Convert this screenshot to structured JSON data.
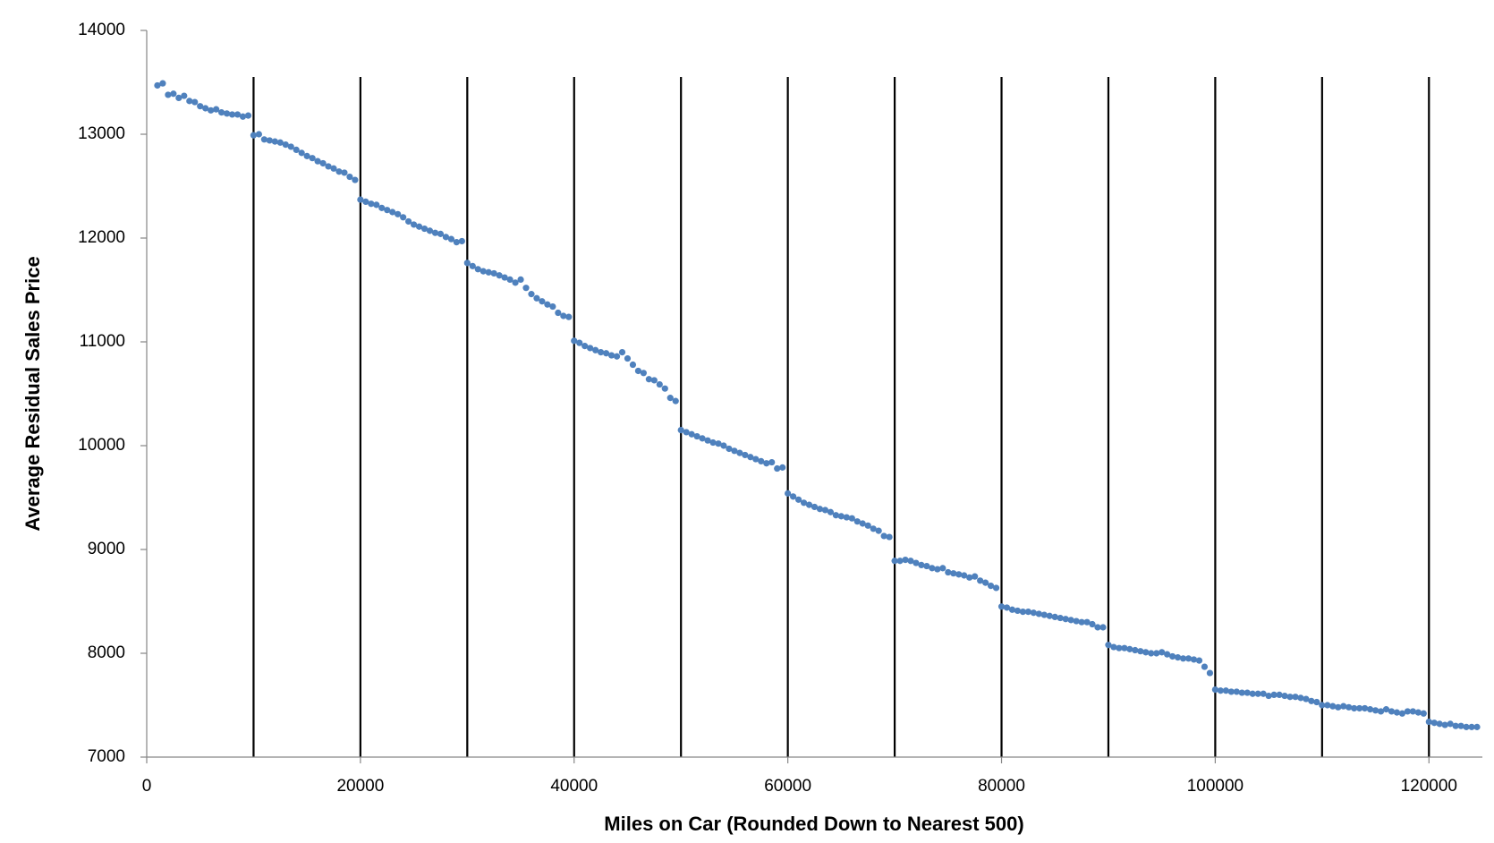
{
  "chart_data": {
    "type": "scatter",
    "xlabel": "Miles on Car (Rounded Down to Nearest 500)",
    "ylabel": "Average Residual Sales Price",
    "color": "#4f81bd",
    "xlim": [
      0,
      125000
    ],
    "ylim": [
      7000,
      14000
    ],
    "xticks": [
      0,
      20000,
      40000,
      60000,
      80000,
      100000,
      120000
    ],
    "yticks": [
      7000,
      8000,
      9000,
      10000,
      11000,
      12000,
      13000,
      14000
    ],
    "vlines": [
      10000,
      20000,
      30000,
      40000,
      50000,
      60000,
      70000,
      80000,
      90000,
      100000,
      110000,
      120000
    ],
    "vline_color": "#000000",
    "x": [
      1000,
      1500,
      2000,
      2500,
      3000,
      3500,
      4000,
      4500,
      5000,
      5500,
      6000,
      6500,
      7000,
      7500,
      8000,
      8500,
      9000,
      9500,
      10000,
      10500,
      11000,
      11500,
      12000,
      12500,
      13000,
      13500,
      14000,
      14500,
      15000,
      15500,
      16000,
      16500,
      17000,
      17500,
      18000,
      18500,
      19000,
      19500,
      20000,
      20500,
      21000,
      21500,
      22000,
      22500,
      23000,
      23500,
      24000,
      24500,
      25000,
      25500,
      26000,
      26500,
      27000,
      27500,
      28000,
      28500,
      29000,
      29500,
      30000,
      30500,
      31000,
      31500,
      32000,
      32500,
      33000,
      33500,
      34000,
      34500,
      35000,
      35500,
      36000,
      36500,
      37000,
      37500,
      38000,
      38500,
      39000,
      39500,
      40000,
      40500,
      41000,
      41500,
      42000,
      42500,
      43000,
      43500,
      44000,
      44500,
      45000,
      45500,
      46000,
      46500,
      47000,
      47500,
      48000,
      48500,
      49000,
      49500,
      50000,
      50500,
      51000,
      51500,
      52000,
      52500,
      53000,
      53500,
      54000,
      54500,
      55000,
      55500,
      56000,
      56500,
      57000,
      57500,
      58000,
      58500,
      59000,
      59500,
      60000,
      60500,
      61000,
      61500,
      62000,
      62500,
      63000,
      63500,
      64000,
      64500,
      65000,
      65500,
      66000,
      66500,
      67000,
      67500,
      68000,
      68500,
      69000,
      69500,
      70000,
      70500,
      71000,
      71500,
      72000,
      72500,
      73000,
      73500,
      74000,
      74500,
      75000,
      75500,
      76000,
      76500,
      77000,
      77500,
      78000,
      78500,
      79000,
      79500,
      80000,
      80500,
      81000,
      81500,
      82000,
      82500,
      83000,
      83500,
      84000,
      84500,
      85000,
      85500,
      86000,
      86500,
      87000,
      87500,
      88000,
      88500,
      89000,
      89500,
      90000,
      90500,
      91000,
      91500,
      92000,
      92500,
      93000,
      93500,
      94000,
      94500,
      95000,
      95500,
      96000,
      96500,
      97000,
      97500,
      98000,
      98500,
      99000,
      99500,
      100000,
      100500,
      101000,
      101500,
      102000,
      102500,
      103000,
      103500,
      104000,
      104500,
      105000,
      105500,
      106000,
      106500,
      107000,
      107500,
      108000,
      108500,
      109000,
      109500,
      110000,
      110500,
      111000,
      111500,
      112000,
      112500,
      113000,
      113500,
      114000,
      114500,
      115000,
      115500,
      116000,
      116500,
      117000,
      117500,
      118000,
      118500,
      119000,
      119500,
      120000,
      120500,
      121000,
      121500,
      122000,
      122500,
      123000,
      123500,
      124000,
      124500
    ],
    "values": [
      13470,
      13490,
      13380,
      13390,
      13350,
      13370,
      13320,
      13310,
      13270,
      13250,
      13230,
      13240,
      13210,
      13200,
      13190,
      13190,
      13170,
      13180,
      12990,
      13000,
      12950,
      12940,
      12930,
      12920,
      12900,
      12880,
      12850,
      12820,
      12790,
      12770,
      12740,
      12720,
      12690,
      12670,
      12640,
      12630,
      12590,
      12560,
      12370,
      12350,
      12330,
      12320,
      12290,
      12270,
      12250,
      12230,
      12200,
      12160,
      12130,
      12110,
      12090,
      12070,
      12050,
      12040,
      12010,
      11990,
      11960,
      11970,
      11760,
      11730,
      11700,
      11680,
      11670,
      11660,
      11640,
      11620,
      11600,
      11570,
      11600,
      11520,
      11460,
      11420,
      11390,
      11360,
      11340,
      11280,
      11250,
      11240,
      11010,
      10990,
      10960,
      10940,
      10920,
      10900,
      10890,
      10870,
      10860,
      10900,
      10840,
      10780,
      10720,
      10700,
      10640,
      10630,
      10590,
      10550,
      10460,
      10430,
      10150,
      10130,
      10110,
      10090,
      10070,
      10050,
      10030,
      10020,
      10000,
      9970,
      9950,
      9930,
      9910,
      9890,
      9870,
      9850,
      9830,
      9840,
      9780,
      9790,
      9540,
      9510,
      9480,
      9450,
      9430,
      9410,
      9390,
      9380,
      9360,
      9330,
      9320,
      9310,
      9300,
      9270,
      9250,
      9230,
      9200,
      9180,
      9130,
      9120,
      8890,
      8890,
      8900,
      8890,
      8870,
      8850,
      8840,
      8820,
      8810,
      8820,
      8780,
      8770,
      8760,
      8750,
      8730,
      8740,
      8700,
      8680,
      8650,
      8630,
      8450,
      8440,
      8420,
      8410,
      8400,
      8400,
      8390,
      8380,
      8370,
      8360,
      8350,
      8340,
      8330,
      8320,
      8310,
      8300,
      8300,
      8280,
      8250,
      8250,
      8080,
      8060,
      8050,
      8050,
      8040,
      8030,
      8020,
      8010,
      8000,
      8000,
      8010,
      7990,
      7970,
      7960,
      7950,
      7950,
      7940,
      7930,
      7870,
      7810,
      7650,
      7640,
      7640,
      7630,
      7630,
      7620,
      7620,
      7610,
      7610,
      7610,
      7590,
      7600,
      7600,
      7590,
      7580,
      7580,
      7570,
      7560,
      7540,
      7530,
      7500,
      7500,
      7490,
      7480,
      7490,
      7480,
      7470,
      7470,
      7470,
      7460,
      7450,
      7440,
      7460,
      7440,
      7430,
      7420,
      7440,
      7440,
      7430,
      7420,
      7340,
      7330,
      7320,
      7310,
      7320,
      7300,
      7300,
      7290,
      7290,
      7290
    ]
  }
}
